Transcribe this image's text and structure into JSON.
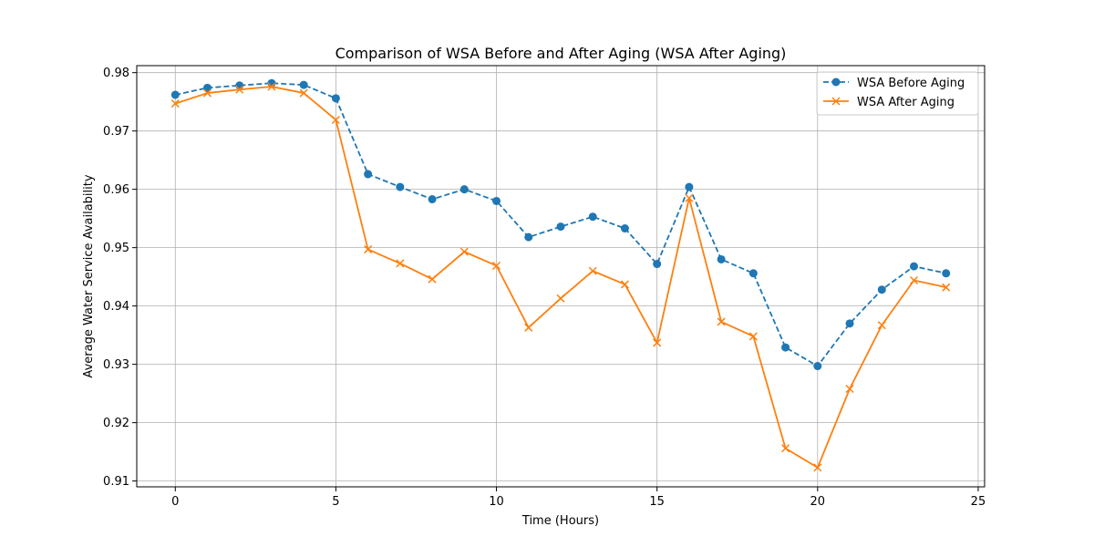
{
  "chart_data": {
    "type": "line",
    "title": "Comparison of WSA Before and After Aging (WSA After Aging)",
    "xlabel": "Time (Hours)",
    "ylabel": "Average Water Service Availability",
    "xlim": [
      -1.2,
      25.2
    ],
    "ylim": [
      0.909,
      0.9812
    ],
    "x_ticks": [
      0,
      5,
      10,
      15,
      20,
      25
    ],
    "y_ticks": [
      0.91,
      0.92,
      0.93,
      0.94,
      0.95,
      0.96,
      0.97,
      0.98
    ],
    "grid": true,
    "legend_position": "top-right",
    "x": [
      0,
      1,
      2,
      3,
      4,
      5,
      6,
      7,
      8,
      9,
      10,
      11,
      12,
      13,
      14,
      15,
      16,
      17,
      18,
      19,
      20,
      21,
      22,
      23,
      24
    ],
    "series": [
      {
        "name": "WSA Before Aging",
        "color": "#1f77b4",
        "line_style": "dashed",
        "marker": "circle",
        "values": [
          0.9762,
          0.9774,
          0.9778,
          0.9782,
          0.9779,
          0.9756,
          0.9626,
          0.9604,
          0.9583,
          0.96,
          0.958,
          0.9518,
          0.9536,
          0.9553,
          0.9533,
          0.9472,
          0.9604,
          0.948,
          0.9456,
          0.9329,
          0.9297,
          0.937,
          0.9428,
          0.9468,
          0.9456
        ]
      },
      {
        "name": "WSA After Aging",
        "color": "#ff7f0e",
        "line_style": "solid",
        "marker": "x",
        "values": [
          0.9747,
          0.9765,
          0.9771,
          0.9776,
          0.9765,
          0.9719,
          0.9497,
          0.9473,
          0.9446,
          0.9493,
          0.9469,
          0.9363,
          0.9413,
          0.946,
          0.9437,
          0.9337,
          0.9585,
          0.9373,
          0.9348,
          0.9156,
          0.9123,
          0.9258,
          0.9367,
          0.9444,
          0.9432
        ]
      }
    ]
  }
}
